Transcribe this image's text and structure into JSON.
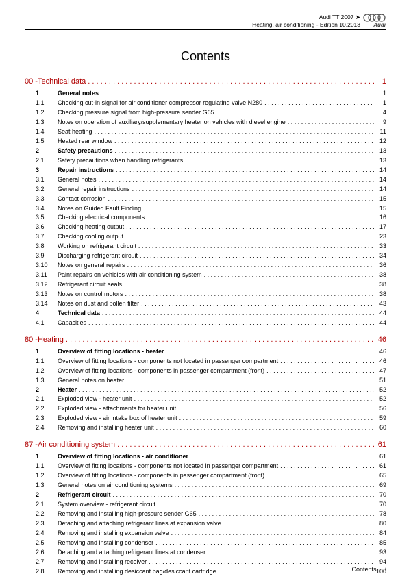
{
  "header": {
    "line1": "Audi TT 2007 ➤",
    "line2": "Heating, air conditioning - Edition 10.2013",
    "brand": "Audi"
  },
  "title": "Contents",
  "footer": {
    "label": "Contents",
    "page": "i"
  },
  "colors": {
    "chapter": "#b00000",
    "text": "#000000"
  },
  "chapters": [
    {
      "num": "00 - ",
      "text": "Technical data",
      "page": "1",
      "items": [
        {
          "num": "1",
          "text": "General notes",
          "page": "1",
          "bold": true
        },
        {
          "num": "1.1",
          "text": "Checking cut-in signal for air conditioner compressor regulating valve N280",
          "page": "1"
        },
        {
          "num": "1.2",
          "text": "Checking pressure signal from high-pressure sender G65",
          "page": "4"
        },
        {
          "num": "1.3",
          "text": "Notes on operation of auxiliary/supplementary heater on vehicles with diesel engine",
          "page": "9"
        },
        {
          "num": "1.4",
          "text": "Seat heating",
          "page": "11"
        },
        {
          "num": "1.5",
          "text": "Heated rear window",
          "page": "12"
        },
        {
          "num": "2",
          "text": "Safety precautions",
          "page": "13",
          "bold": true
        },
        {
          "num": "2.1",
          "text": "Safety precautions when handling refrigerants",
          "page": "13"
        },
        {
          "num": "3",
          "text": "Repair instructions",
          "page": "14",
          "bold": true
        },
        {
          "num": "3.1",
          "text": "General notes",
          "page": "14"
        },
        {
          "num": "3.2",
          "text": "General repair instructions",
          "page": "14"
        },
        {
          "num": "3.3",
          "text": "Contact corrosion",
          "page": "15"
        },
        {
          "num": "3.4",
          "text": "Notes on Guided Fault Finding",
          "page": "15"
        },
        {
          "num": "3.5",
          "text": "Checking electrical components",
          "page": "16"
        },
        {
          "num": "3.6",
          "text": "Checking heating output",
          "page": "17"
        },
        {
          "num": "3.7",
          "text": "Checking cooling output",
          "page": "23"
        },
        {
          "num": "3.8",
          "text": "Working on refrigerant circuit",
          "page": "33"
        },
        {
          "num": "3.9",
          "text": "Discharging refrigerant circuit",
          "page": "34"
        },
        {
          "num": "3.10",
          "text": "Notes on general repairs",
          "page": "36"
        },
        {
          "num": "3.11",
          "text": "Paint repairs on vehicles with air conditioning system",
          "page": "38"
        },
        {
          "num": "3.12",
          "text": "Refrigerant circuit seals",
          "page": "38"
        },
        {
          "num": "3.13",
          "text": "Notes on control motors",
          "page": "38"
        },
        {
          "num": "3.14",
          "text": "Notes on dust and pollen filter",
          "page": "43"
        },
        {
          "num": "4",
          "text": "Technical data",
          "page": "44",
          "bold": true
        },
        {
          "num": "4.1",
          "text": "Capacities",
          "page": "44"
        }
      ]
    },
    {
      "num": "80 - ",
      "text": "Heating",
      "page": "46",
      "items": [
        {
          "num": "1",
          "text": "Overview of fitting locations - heater",
          "page": "46",
          "bold": true
        },
        {
          "num": "1.1",
          "text": "Overview of fitting locations - components not located in passenger compartment",
          "page": "46"
        },
        {
          "num": "1.2",
          "text": "Overview of fitting locations - components in passenger compartment (front)",
          "page": "47"
        },
        {
          "num": "1.3",
          "text": "General notes on heater",
          "page": "51"
        },
        {
          "num": "2",
          "text": "Heater",
          "page": "52",
          "bold": true
        },
        {
          "num": "2.1",
          "text": "Exploded view - heater unit",
          "page": "52"
        },
        {
          "num": "2.2",
          "text": "Exploded view - attachments for heater unit",
          "page": "56"
        },
        {
          "num": "2.3",
          "text": "Exploded view - air intake box of heater unit",
          "page": "59"
        },
        {
          "num": "2.4",
          "text": "Removing and installing heater unit",
          "page": "60"
        }
      ]
    },
    {
      "num": "87 - ",
      "text": "Air conditioning system",
      "page": "61",
      "items": [
        {
          "num": "1",
          "text": "Overview of fitting locations - air conditioner",
          "page": "61",
          "bold": true
        },
        {
          "num": "1.1",
          "text": "Overview of fitting locations - components not located in passenger compartment",
          "page": "61"
        },
        {
          "num": "1.2",
          "text": "Overview of fitting locations - components in passenger compartment (front)",
          "page": "65"
        },
        {
          "num": "1.3",
          "text": "General notes on air conditioning systems",
          "page": "69"
        },
        {
          "num": "2",
          "text": "Refrigerant circuit",
          "page": "70",
          "bold": true
        },
        {
          "num": "2.1",
          "text": "System overview - refrigerant circuit",
          "page": "70"
        },
        {
          "num": "2.2",
          "text": "Removing and installing high-pressure sender G65",
          "page": "78"
        },
        {
          "num": "2.3",
          "text": "Detaching and attaching refrigerant lines at expansion valve",
          "page": "80"
        },
        {
          "num": "2.4",
          "text": "Removing and installing expansion valve",
          "page": "84"
        },
        {
          "num": "2.5",
          "text": "Removing and installing condenser",
          "page": "85"
        },
        {
          "num": "2.6",
          "text": "Detaching and attaching refrigerant lines at condenser",
          "page": "93"
        },
        {
          "num": "2.7",
          "text": "Removing and installing receiver",
          "page": "94"
        },
        {
          "num": "2.8",
          "text": "Removing and installing desiccant bag/desiccant cartridge",
          "page": "100"
        }
      ]
    }
  ]
}
